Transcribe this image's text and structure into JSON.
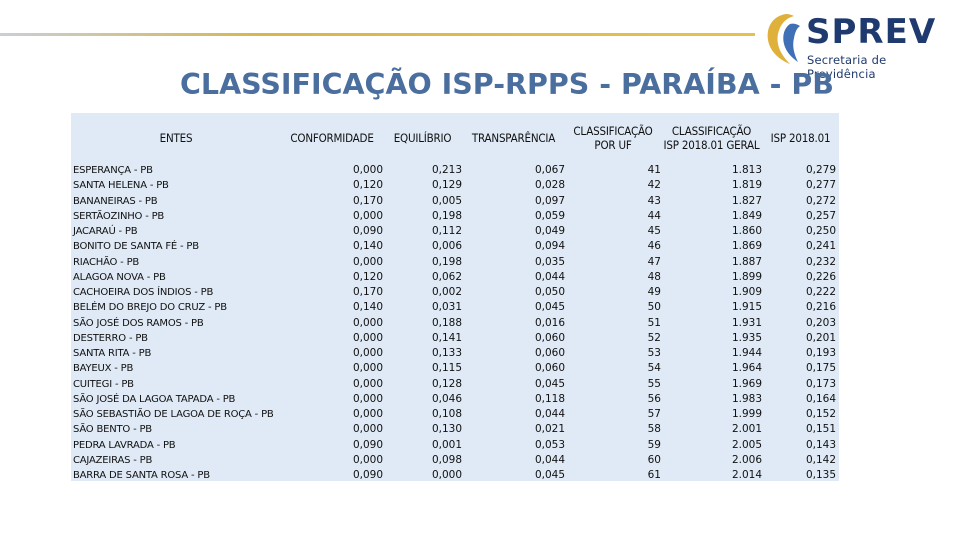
{
  "logo": {
    "name": "SPREV",
    "subtitle": "Secretaria de Previdência",
    "colors": {
      "navy": "#1f3a6e",
      "gold": "#e0b13a",
      "blue": "#3f6fb5"
    }
  },
  "title": "CLASSIFICAÇÃO ISP-RPPS - PARAÍBA - PB",
  "table": {
    "headers": {
      "entes": "ENTES",
      "conformidade": "CONFORMIDADE",
      "equilibrio": "EQUILÍBRIO",
      "transparencia": "TRANSPARÊNCIA",
      "class_uf": "CLASSIFICAÇÃO POR UF",
      "class_geral": "CLASSIFICAÇÃO ISP 2018.01 GERAL",
      "isp": "ISP 2018.01"
    },
    "rows": [
      {
        "ente": "ESPERANÇA - PB",
        "conformidade": "0,000",
        "equilibrio": "0,213",
        "transparencia": "0,067",
        "class_uf": "41",
        "class_geral": "1.813",
        "isp": "0,279"
      },
      {
        "ente": "SANTA HELENA - PB",
        "conformidade": "0,120",
        "equilibrio": "0,129",
        "transparencia": "0,028",
        "class_uf": "42",
        "class_geral": "1.819",
        "isp": "0,277"
      },
      {
        "ente": "BANANEIRAS - PB",
        "conformidade": "0,170",
        "equilibrio": "0,005",
        "transparencia": "0,097",
        "class_uf": "43",
        "class_geral": "1.827",
        "isp": "0,272"
      },
      {
        "ente": "SERTÃOZINHO - PB",
        "conformidade": "0,000",
        "equilibrio": "0,198",
        "transparencia": "0,059",
        "class_uf": "44",
        "class_geral": "1.849",
        "isp": "0,257"
      },
      {
        "ente": "JACARAÚ - PB",
        "conformidade": "0,090",
        "equilibrio": "0,112",
        "transparencia": "0,049",
        "class_uf": "45",
        "class_geral": "1.860",
        "isp": "0,250"
      },
      {
        "ente": "BONITO DE SANTA FÉ - PB",
        "conformidade": "0,140",
        "equilibrio": "0,006",
        "transparencia": "0,094",
        "class_uf": "46",
        "class_geral": "1.869",
        "isp": "0,241"
      },
      {
        "ente": "RIACHÃO - PB",
        "conformidade": "0,000",
        "equilibrio": "0,198",
        "transparencia": "0,035",
        "class_uf": "47",
        "class_geral": "1.887",
        "isp": "0,232"
      },
      {
        "ente": "ALAGOA NOVA - PB",
        "conformidade": "0,120",
        "equilibrio": "0,062",
        "transparencia": "0,044",
        "class_uf": "48",
        "class_geral": "1.899",
        "isp": "0,226"
      },
      {
        "ente": "CACHOEIRA DOS ÍNDIOS - PB",
        "conformidade": "0,170",
        "equilibrio": "0,002",
        "transparencia": "0,050",
        "class_uf": "49",
        "class_geral": "1.909",
        "isp": "0,222"
      },
      {
        "ente": "BELÉM DO BREJO DO CRUZ - PB",
        "conformidade": "0,140",
        "equilibrio": "0,031",
        "transparencia": "0,045",
        "class_uf": "50",
        "class_geral": "1.915",
        "isp": "0,216"
      },
      {
        "ente": "SÃO JOSÉ DOS RAMOS - PB",
        "conformidade": "0,000",
        "equilibrio": "0,188",
        "transparencia": "0,016",
        "class_uf": "51",
        "class_geral": "1.931",
        "isp": "0,203"
      },
      {
        "ente": "DESTERRO - PB",
        "conformidade": "0,000",
        "equilibrio": "0,141",
        "transparencia": "0,060",
        "class_uf": "52",
        "class_geral": "1.935",
        "isp": "0,201"
      },
      {
        "ente": "SANTA RITA - PB",
        "conformidade": "0,000",
        "equilibrio": "0,133",
        "transparencia": "0,060",
        "class_uf": "53",
        "class_geral": "1.944",
        "isp": "0,193"
      },
      {
        "ente": "BAYEUX - PB",
        "conformidade": "0,000",
        "equilibrio": "0,115",
        "transparencia": "0,060",
        "class_uf": "54",
        "class_geral": "1.964",
        "isp": "0,175"
      },
      {
        "ente": "CUITEGI - PB",
        "conformidade": "0,000",
        "equilibrio": "0,128",
        "transparencia": "0,045",
        "class_uf": "55",
        "class_geral": "1.969",
        "isp": "0,173"
      },
      {
        "ente": "SÃO JOSÉ DA LAGOA TAPADA - PB",
        "conformidade": "0,000",
        "equilibrio": "0,046",
        "transparencia": "0,118",
        "class_uf": "56",
        "class_geral": "1.983",
        "isp": "0,164"
      },
      {
        "ente": "SÃO SEBASTIÃO DE LAGOA DE ROÇA - PB",
        "conformidade": "0,000",
        "equilibrio": "0,108",
        "transparencia": "0,044",
        "class_uf": "57",
        "class_geral": "1.999",
        "isp": "0,152"
      },
      {
        "ente": "SÃO BENTO - PB",
        "conformidade": "0,000",
        "equilibrio": "0,130",
        "transparencia": "0,021",
        "class_uf": "58",
        "class_geral": "2.001",
        "isp": "0,151"
      },
      {
        "ente": "PEDRA LAVRADA - PB",
        "conformidade": "0,090",
        "equilibrio": "0,001",
        "transparencia": "0,053",
        "class_uf": "59",
        "class_geral": "2.005",
        "isp": "0,143"
      },
      {
        "ente": "CAJAZEIRAS - PB",
        "conformidade": "0,000",
        "equilibrio": "0,098",
        "transparencia": "0,044",
        "class_uf": "60",
        "class_geral": "2.006",
        "isp": "0,142"
      },
      {
        "ente": "BARRA DE SANTA ROSA - PB",
        "conformidade": "0,090",
        "equilibrio": "0,000",
        "transparencia": "0,045",
        "class_uf": "61",
        "class_geral": "2.014",
        "isp": "0,135"
      }
    ]
  }
}
